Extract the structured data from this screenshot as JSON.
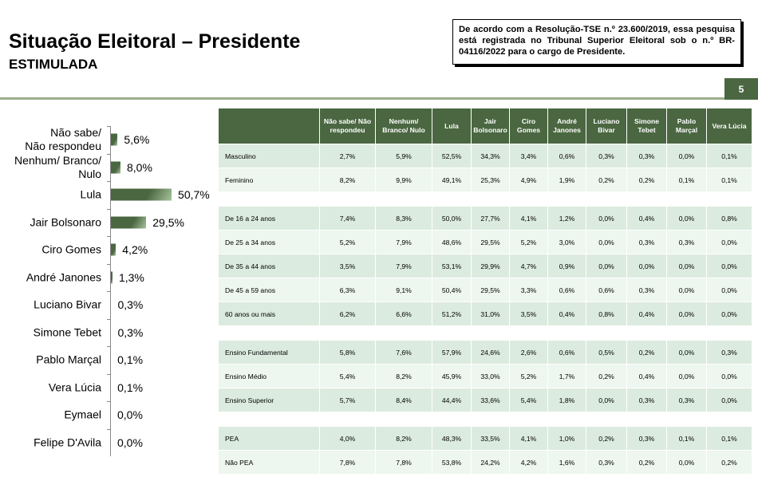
{
  "header": {
    "title": "Situação Eleitoral – Presidente",
    "subtitle": "ESTIMULADA",
    "note": "De acordo com a Resolução-TSE n.º 23.600/2019, essa pesquisa está registrada no Tribunal Superior Eleitoral sob o n.º BR-04116/2022 para o cargo de Presidente.",
    "page": "5"
  },
  "chart_data": {
    "type": "bar",
    "orientation": "horizontal",
    "categories": [
      "Não sabe/\nNão respondeu",
      "Nenhum/ Branco/\nNulo",
      "Lula",
      "Jair Bolsonaro",
      "Ciro Gomes",
      "André Janones",
      "Luciano Bivar",
      "Simone Tebet",
      "Pablo Marçal",
      "Vera Lúcia",
      "Eymael",
      "Felipe D'Avila"
    ],
    "values": [
      5.6,
      8.0,
      50.7,
      29.5,
      4.2,
      1.3,
      0.3,
      0.3,
      0.1,
      0.1,
      0.0,
      0.0
    ],
    "labels": [
      "5,6%",
      "8,0%",
      "50,7%",
      "29,5%",
      "4,2%",
      "1,3%",
      "0,3%",
      "0,3%",
      "0,1%",
      "0,1%",
      "0,0%",
      "0,0%"
    ],
    "color": "#4a6741"
  },
  "table": {
    "headers": [
      "Não sabe/ Não respondeu",
      "Nenhum/ Branco/ Nulo",
      "Lula",
      "Jair Bolsonaro",
      "Ciro Gomes",
      "André Janones",
      "Luciano Bivar",
      "Simone Tebet",
      "Pablo Marçal",
      "Vera Lúcia"
    ],
    "groups": [
      [
        [
          "Masculino",
          "2,7%",
          "5,9%",
          "52,5%",
          "34,3%",
          "3,4%",
          "0,6%",
          "0,3%",
          "0,3%",
          "0,0%",
          "0,1%"
        ],
        [
          "Feminino",
          "8,2%",
          "9,9%",
          "49,1%",
          "25,3%",
          "4,9%",
          "1,9%",
          "0,2%",
          "0,2%",
          "0,1%",
          "0,1%"
        ]
      ],
      [
        [
          "De 16 a 24 anos",
          "7,4%",
          "8,3%",
          "50,0%",
          "27,7%",
          "4,1%",
          "1,2%",
          "0,0%",
          "0,4%",
          "0,0%",
          "0,8%"
        ],
        [
          "De 25 a 34 anos",
          "5,2%",
          "7,9%",
          "48,6%",
          "29,5%",
          "5,2%",
          "3,0%",
          "0,0%",
          "0,3%",
          "0,3%",
          "0,0%"
        ],
        [
          "De 35 a 44 anos",
          "3,5%",
          "7,9%",
          "53,1%",
          "29,9%",
          "4,7%",
          "0,9%",
          "0,0%",
          "0,0%",
          "0,0%",
          "0,0%"
        ],
        [
          "De 45 a 59 anos",
          "6,3%",
          "9,1%",
          "50,4%",
          "29,5%",
          "3,3%",
          "0,6%",
          "0,6%",
          "0,3%",
          "0,0%",
          "0,0%"
        ],
        [
          "60 anos ou mais",
          "6,2%",
          "6,6%",
          "51,2%",
          "31,0%",
          "3,5%",
          "0,4%",
          "0,8%",
          "0,4%",
          "0,0%",
          "0,0%"
        ]
      ],
      [
        [
          "Ensino Fundamental",
          "5,8%",
          "7,6%",
          "57,9%",
          "24,6%",
          "2,6%",
          "0,6%",
          "0,5%",
          "0,2%",
          "0,0%",
          "0,3%"
        ],
        [
          "Ensino Médio",
          "5,4%",
          "8,2%",
          "45,9%",
          "33,0%",
          "5,2%",
          "1,7%",
          "0,2%",
          "0,4%",
          "0,0%",
          "0,0%"
        ],
        [
          "Ensino Superior",
          "5,7%",
          "8,4%",
          "44,4%",
          "33,6%",
          "5,4%",
          "1,8%",
          "0,0%",
          "0,3%",
          "0,3%",
          "0,0%"
        ]
      ],
      [
        [
          "PEA",
          "4,0%",
          "8,2%",
          "48,3%",
          "33,5%",
          "4,1%",
          "1,0%",
          "0,2%",
          "0,3%",
          "0,1%",
          "0,1%"
        ],
        [
          "Não PEA",
          "7,8%",
          "7,8%",
          "53,8%",
          "24,2%",
          "4,2%",
          "1,6%",
          "0,3%",
          "0,2%",
          "0,0%",
          "0,2%"
        ]
      ]
    ]
  }
}
